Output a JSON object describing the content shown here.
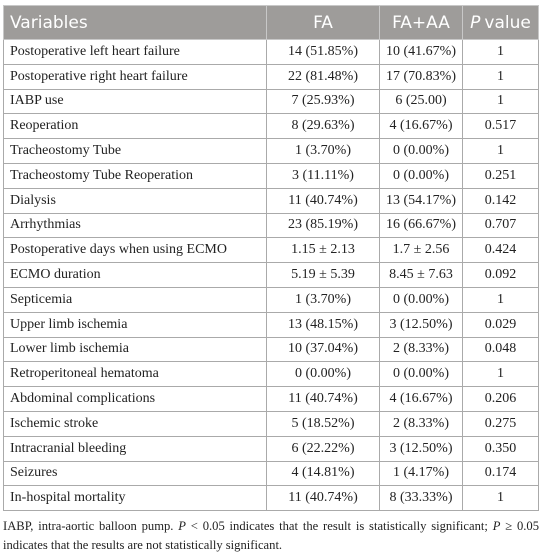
{
  "table": {
    "header": {
      "variables": "Variables",
      "fa": "FA",
      "fa_aa": "FA+AA",
      "p_symbol": "P",
      "p_word": "value"
    },
    "rows": [
      [
        "Postoperative left heart failure",
        "14 (51.85%)",
        "10 (41.67%)",
        "1"
      ],
      [
        "Postoperative right heart failure",
        "22 (81.48%)",
        "17 (70.83%)",
        "1"
      ],
      [
        "IABP use",
        "7 (25.93%)",
        "6 (25.00)",
        "1"
      ],
      [
        "Reoperation",
        "8 (29.63%)",
        "4 (16.67%)",
        "0.517"
      ],
      [
        "Tracheostomy Tube",
        "1 (3.70%)",
        "0 (0.00%)",
        "1"
      ],
      [
        "Tracheostomy Tube Reoperation",
        "3 (11.11%)",
        "0 (0.00%)",
        "0.251"
      ],
      [
        "Dialysis",
        "11 (40.74%)",
        "13 (54.17%)",
        "0.142"
      ],
      [
        "Arrhythmias",
        "23 (85.19%)",
        "16 (66.67%)",
        "0.707"
      ],
      [
        "Postoperative days when using ECMO",
        "1.15 ± 2.13",
        "1.7 ± 2.56",
        "0.424"
      ],
      [
        "ECMO duration",
        "5.19 ± 5.39",
        "8.45 ± 7.63",
        "0.092"
      ],
      [
        "Septicemia",
        "1 (3.70%)",
        "0 (0.00%)",
        "1"
      ],
      [
        "Upper limb ischemia",
        "13 (48.15%)",
        "3 (12.50%)",
        "0.029"
      ],
      [
        "Lower limb ischemia",
        "10 (37.04%)",
        "2 (8.33%)",
        "0.048"
      ],
      [
        "Retroperitoneal hematoma",
        "0 (0.00%)",
        "0 (0.00%)",
        "1"
      ],
      [
        "Abdominal complications",
        "11 (40.74%)",
        "4 (16.67%)",
        "0.206"
      ],
      [
        "Ischemic stroke",
        "5 (18.52%)",
        "2 (8.33%)",
        "0.275"
      ],
      [
        "Intracranial bleeding",
        "6 (22.22%)",
        "3 (12.50%)",
        "0.350"
      ],
      [
        "Seizures",
        "4 (14.81%)",
        "1 (4.17%)",
        "0.174"
      ],
      [
        "In-hospital mortality",
        "11 (40.74%)",
        "8 (33.33%)",
        "1"
      ]
    ]
  },
  "footnote": [
    "IABP, intra-aortic balloon pump. ",
    "P",
    " < 0.05 indicates that the result is statistically significant; ",
    "P",
    " ≥ 0.05 indicates that the results are not statistically significant."
  ]
}
